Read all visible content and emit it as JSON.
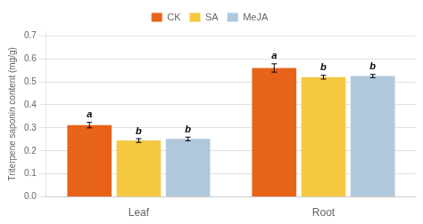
{
  "chart_data": {
    "type": "bar",
    "categories": [
      "Leaf",
      "Root"
    ],
    "series": [
      {
        "name": "CK",
        "color": "#E8631A",
        "values": [
          0.312,
          0.56
        ],
        "errors": [
          0.012,
          0.018
        ],
        "letters": [
          "a",
          "a"
        ]
      },
      {
        "name": "SA",
        "color": "#F5C842",
        "values": [
          0.245,
          0.52
        ],
        "errors": [
          0.008,
          0.008
        ],
        "letters": [
          "b",
          "b"
        ]
      },
      {
        "name": "MeJA",
        "color": "#B0C8DC",
        "values": [
          0.252,
          0.525
        ],
        "errors": [
          0.008,
          0.007
        ],
        "letters": [
          "b",
          "b"
        ]
      }
    ],
    "ylabel": "Triterpene saponin content (mg/g)",
    "ylim": [
      0,
      0.72
    ],
    "yticks": [
      {
        "value": 0,
        "label": "0.0"
      },
      0.1,
      0.2,
      0.3,
      0.4,
      0.5,
      0.6,
      0.7
    ],
    "grid": true,
    "legend": "top"
  }
}
